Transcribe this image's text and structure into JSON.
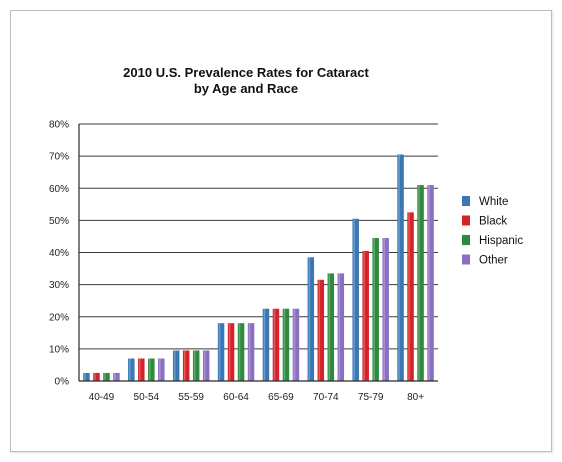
{
  "chart_data": {
    "type": "bar",
    "title": "2010 U.S. Prevalence Rates for Cataract",
    "subtitle": "by Age and Race",
    "xlabel": "",
    "ylabel": "",
    "categories": [
      "40-49",
      "50-54",
      "55-59",
      "60-64",
      "65-69",
      "70-74",
      "75-79",
      "80+"
    ],
    "series": [
      {
        "name": "White",
        "color": "#3a78b5",
        "values": [
          2.5,
          7,
          9.5,
          18,
          22.5,
          38.5,
          50.5,
          70.5
        ]
      },
      {
        "name": "Black",
        "color": "#d6232a",
        "values": [
          2.5,
          7,
          9.5,
          18,
          22.5,
          31.5,
          40.5,
          52.5
        ]
      },
      {
        "name": "Hispanic",
        "color": "#2e8b3e",
        "values": [
          2.5,
          7,
          9.5,
          18,
          22.5,
          33.5,
          44.5,
          61
        ]
      },
      {
        "name": "Other",
        "color": "#8a6fc2",
        "values": [
          2.5,
          7,
          9.5,
          18,
          22.5,
          33.5,
          44.5,
          61
        ]
      }
    ],
    "ylim": [
      0,
      80
    ],
    "y_ticks": [
      "0%",
      "10%",
      "20%",
      "30%",
      "40%",
      "50%",
      "60%",
      "70%",
      "80%"
    ],
    "y_tick_values": [
      0,
      10,
      20,
      30,
      40,
      50,
      60,
      70,
      80
    ],
    "grid": true,
    "legend_position": "right"
  }
}
